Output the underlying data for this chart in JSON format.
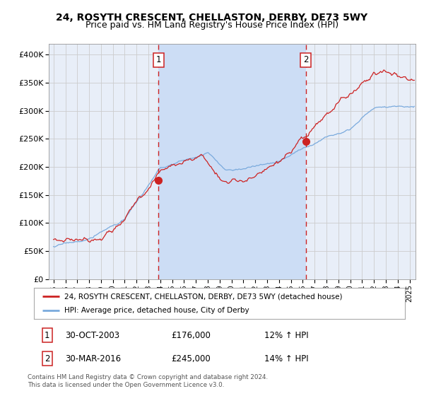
{
  "title": "24, ROSYTH CRESCENT, CHELLASTON, DERBY, DE73 5WY",
  "subtitle": "Price paid vs. HM Land Registry's House Price Index (HPI)",
  "ylim": [
    0,
    420000
  ],
  "yticks": [
    0,
    50000,
    100000,
    150000,
    200000,
    250000,
    300000,
    350000,
    400000
  ],
  "ytick_labels": [
    "£0",
    "£50K",
    "£100K",
    "£150K",
    "£200K",
    "£250K",
    "£300K",
    "£350K",
    "£400K"
  ],
  "xlim_start": 1994.6,
  "xlim_end": 2025.5,
  "xtick_years": [
    1995,
    1996,
    1997,
    1998,
    1999,
    2000,
    2001,
    2002,
    2003,
    2004,
    2005,
    2006,
    2007,
    2008,
    2009,
    2010,
    2011,
    2012,
    2013,
    2014,
    2015,
    2016,
    2017,
    2018,
    2019,
    2020,
    2021,
    2022,
    2023,
    2024,
    2025
  ],
  "fig_bg_color": "#ffffff",
  "plot_bg_color": "#e8eef8",
  "shaded_region_color": "#ccddf5",
  "shaded_x_start": 2003.83,
  "shaded_x_end": 2016.25,
  "vline1_x": 2003.83,
  "vline2_x": 2016.25,
  "vline_color": "#cc2222",
  "dot1_x": 2003.83,
  "dot1_y": 176000,
  "dot2_x": 2016.25,
  "dot2_y": 245000,
  "dot_color": "#cc2222",
  "line1_color": "#cc2222",
  "line2_color": "#7aaadd",
  "legend_label1": "24, ROSYTH CRESCENT, CHELLASTON, DERBY, DE73 5WY (detached house)",
  "legend_label2": "HPI: Average price, detached house, City of Derby",
  "note1_num": "1",
  "note1_date": "30-OCT-2003",
  "note1_price": "£176,000",
  "note1_pct": "12% ↑ HPI",
  "note2_num": "2",
  "note2_date": "30-MAR-2016",
  "note2_price": "£245,000",
  "note2_pct": "14% ↑ HPI",
  "footer1": "Contains HM Land Registry data © Crown copyright and database right 2024.",
  "footer2": "This data is licensed under the Open Government Licence v3.0.",
  "grid_color": "#cccccc",
  "title_fontsize": 10,
  "subtitle_fontsize": 9
}
